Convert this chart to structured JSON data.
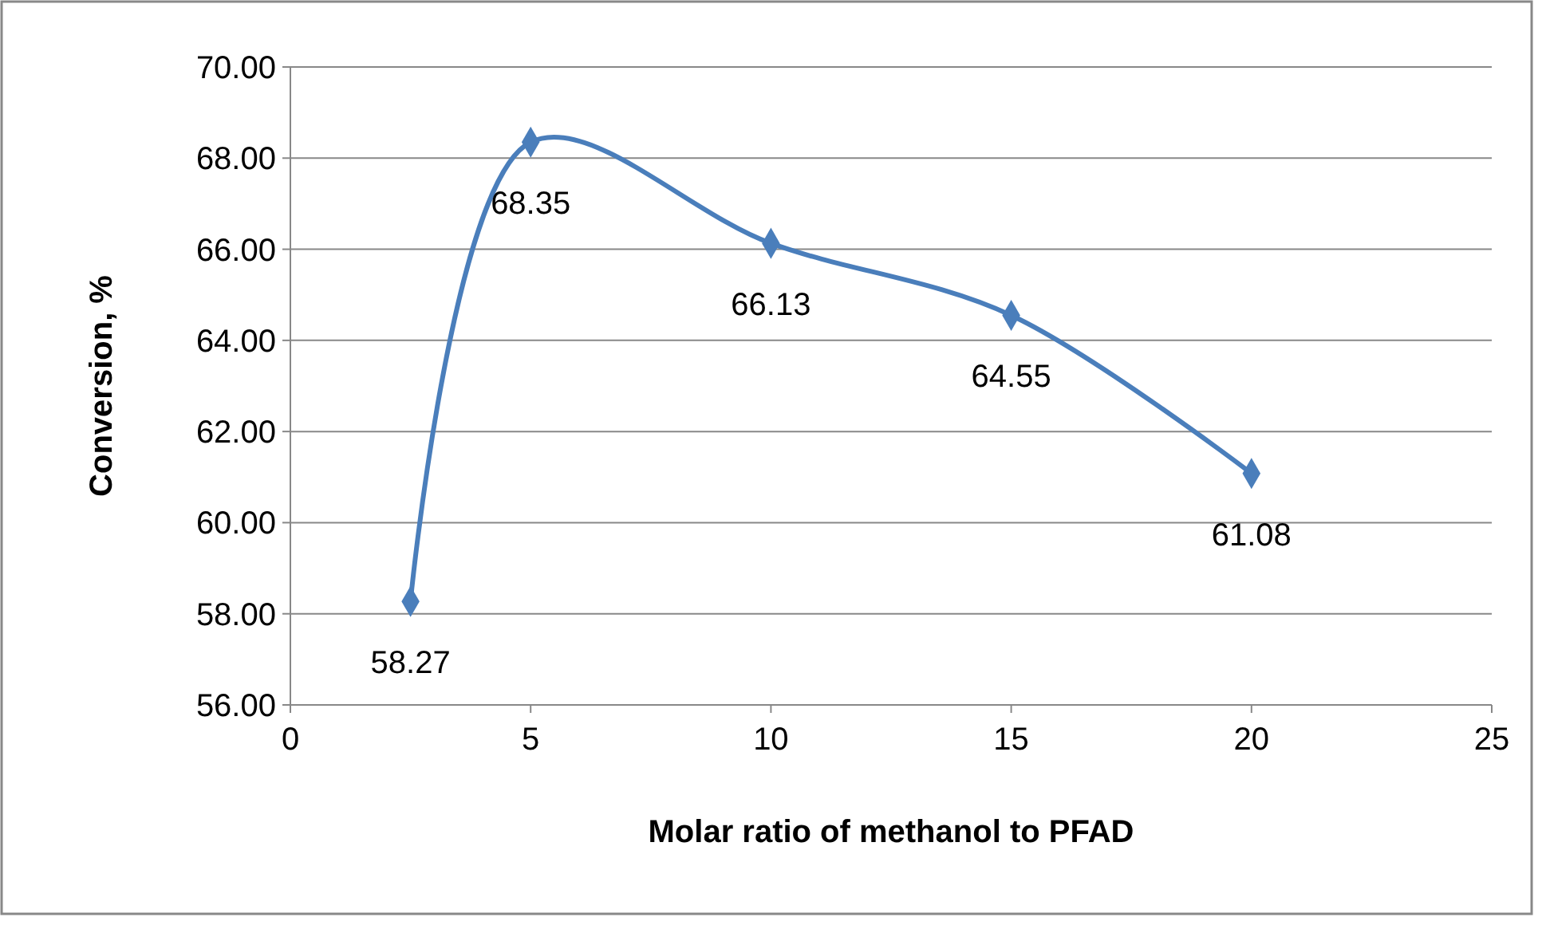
{
  "chart_data": {
    "type": "line",
    "xlabel": "Molar ratio of methanol to PFAD",
    "ylabel": "Conversion, %",
    "x": [
      2.5,
      5,
      10,
      15,
      20
    ],
    "series": [
      {
        "color": "#4a7ebb",
        "values": [
          58.27,
          68.35,
          66.13,
          64.55,
          61.08
        ]
      }
    ],
    "xlim": [
      0,
      25
    ],
    "xticks": [
      0,
      5,
      10,
      15,
      20,
      25
    ],
    "ylim": [
      56,
      70
    ],
    "yticks": [
      {
        "value": 56,
        "label": "56.00"
      },
      {
        "value": 58,
        "label": "58.00"
      },
      {
        "value": 60,
        "label": "60.00"
      },
      {
        "value": 62,
        "label": "62.00"
      },
      {
        "value": 64,
        "label": "64.00"
      },
      {
        "value": 66,
        "label": "66.00"
      },
      {
        "value": 68,
        "label": "68.00"
      },
      {
        "value": 70,
        "label": "70.00"
      }
    ],
    "grid": "y",
    "marker": "diamond",
    "line_style": "solid",
    "data_labels": true
  }
}
